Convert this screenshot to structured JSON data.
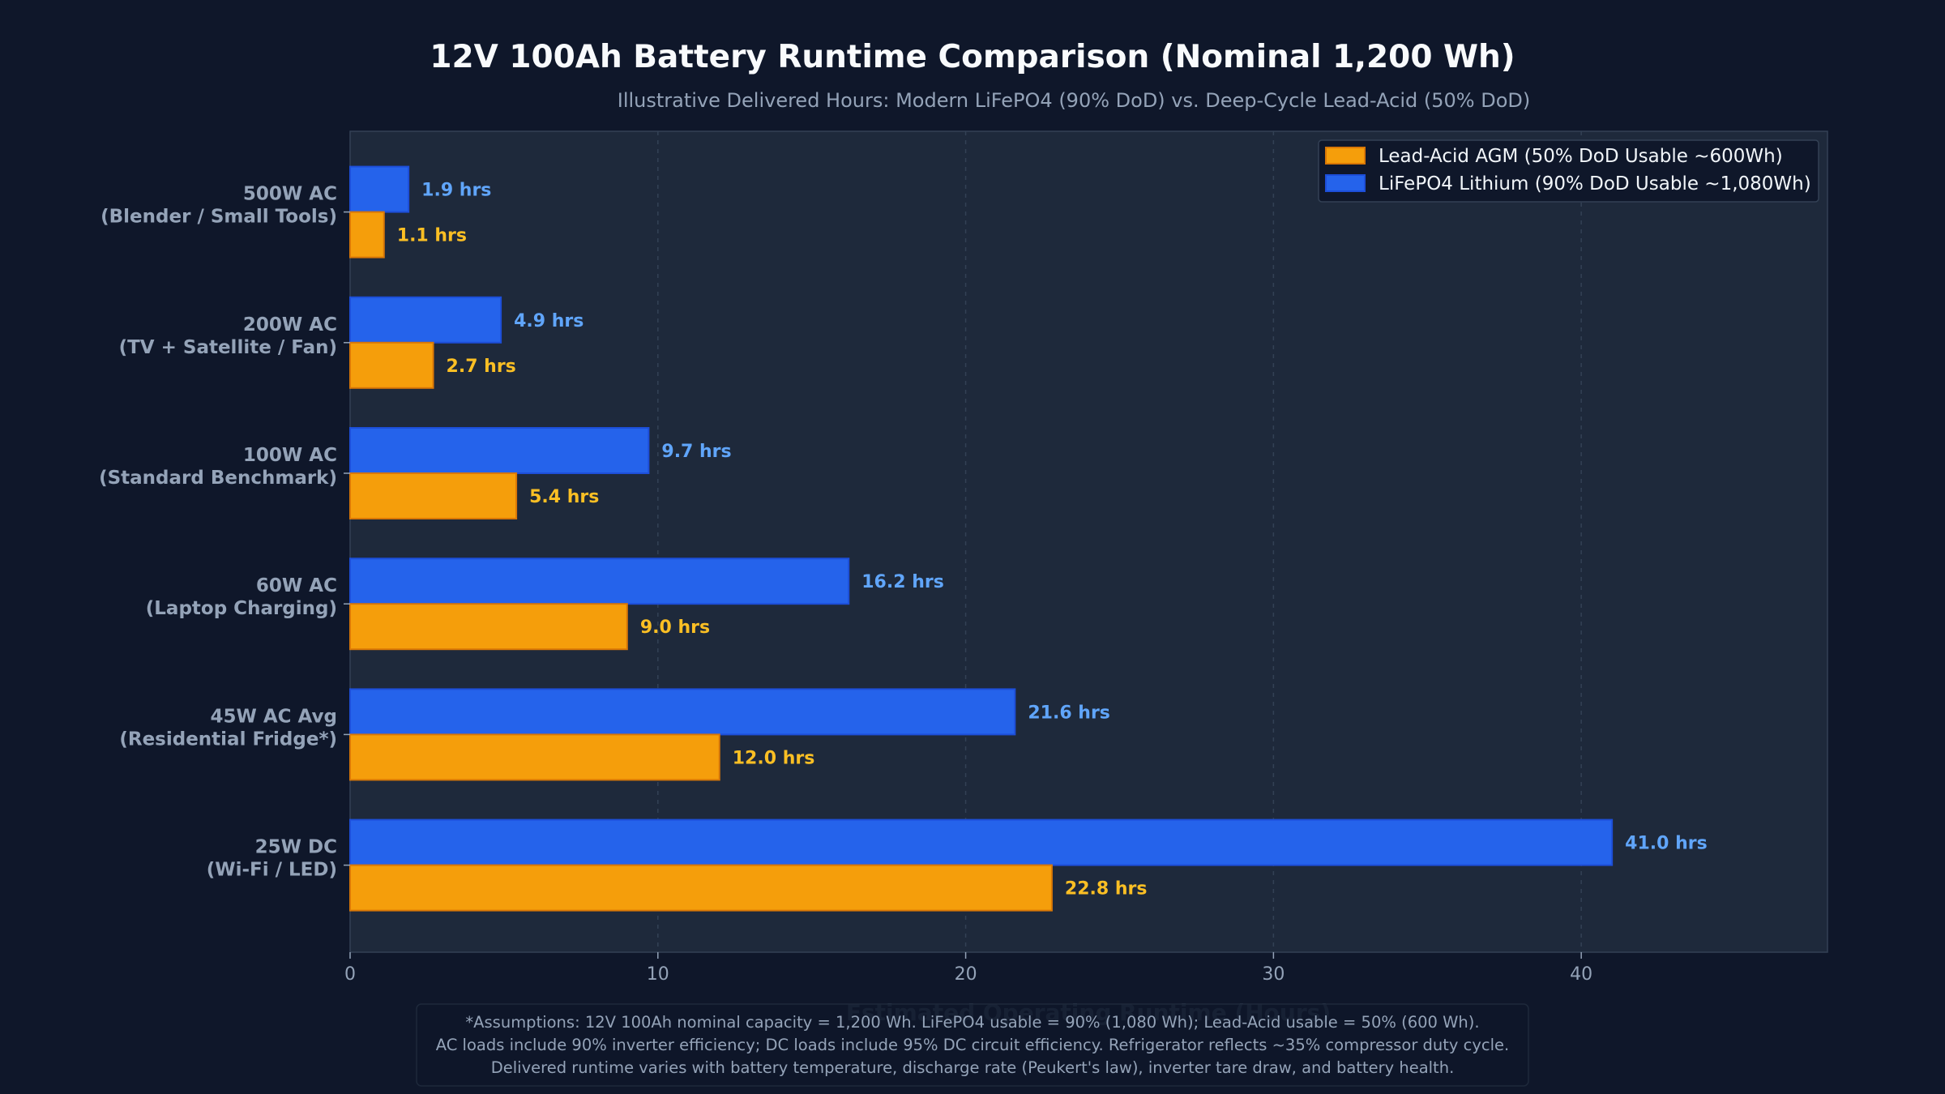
{
  "chart_data": {
    "type": "bar",
    "orientation": "horizontal",
    "title": "12V 100Ah Battery Runtime Comparison (Nominal 1,200 Wh)",
    "subtitle": "Illustrative Delivered Hours: Modern LiFePO4 (90% DoD) vs. Deep-Cycle Lead-Acid (50% DoD)",
    "xlabel": "Estimated Operating Runtime (Hours)",
    "ylabel": "",
    "xlim": [
      0,
      48
    ],
    "x_ticks": [
      0,
      10,
      20,
      30,
      40
    ],
    "grid": "x, dashed",
    "legend_position": "top-right",
    "categories": [
      [
        "500W AC",
        "(Blender / Small Tools)"
      ],
      [
        "200W AC",
        "(TV + Satellite / Fan)"
      ],
      [
        "100W AC",
        "(Standard Benchmark)"
      ],
      [
        "60W AC",
        "(Laptop Charging)"
      ],
      [
        "45W AC Avg",
        "(Residential Fridge*)"
      ],
      [
        "25W DC",
        "(Wi-Fi / LED)"
      ]
    ],
    "series": [
      {
        "name": "LiFePO4 Lithium (90% DoD Usable ~1,080Wh)",
        "color": "#2563eb",
        "label_color": "#60a5fa",
        "values": [
          1.9,
          4.9,
          9.7,
          16.2,
          21.6,
          41.0
        ],
        "data_labels": [
          "1.9 hrs",
          "4.9 hrs",
          "9.7 hrs",
          "16.2 hrs",
          "21.6 hrs",
          "41.0 hrs"
        ]
      },
      {
        "name": "Lead-Acid AGM (50% DoD Usable ~600Wh)",
        "color": "#f59e0b",
        "label_color": "#fbbf24",
        "values": [
          1.1,
          2.7,
          5.4,
          9.0,
          12.0,
          22.8
        ],
        "data_labels": [
          "1.1 hrs",
          "2.7 hrs",
          "5.4 hrs",
          "9.0 hrs",
          "12.0 hrs",
          "22.8 hrs"
        ]
      }
    ],
    "legend_order": [
      1,
      0
    ],
    "footnote": [
      "*Assumptions: 12V 100Ah nominal capacity = 1,200 Wh. LiFePO4 usable = 90% (1,080 Wh); Lead-Acid usable = 50% (600 Wh).",
      "AC loads include 90% inverter efficiency; DC loads include 95% DC circuit efficiency. Refrigerator reflects ~35% compressor duty cycle.",
      "Delivered runtime varies with battery temperature, discharge rate (Peukert's law), inverter tare draw, and battery health."
    ]
  }
}
